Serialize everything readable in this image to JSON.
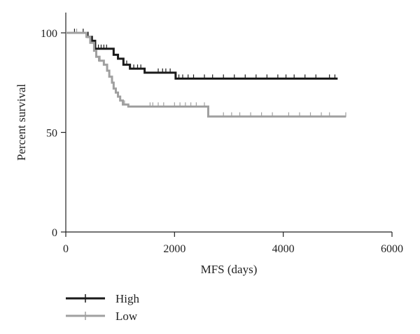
{
  "chart_data": {
    "type": "line",
    "title": "",
    "xlabel": "MFS (days)",
    "ylabel": "Percent survival",
    "xlim": [
      0,
      6000
    ],
    "ylim": [
      0,
      100
    ],
    "x_ticks": [
      "0",
      "2000",
      "4000",
      "6000"
    ],
    "y_ticks": [
      "0",
      "50",
      "100"
    ],
    "x_tick_values": [
      0,
      2000,
      4000,
      6000
    ],
    "y_tick_values": [
      0,
      50,
      100
    ],
    "grid": false,
    "legend_position": "bottom-left",
    "series": [
      {
        "name": "High",
        "color": "#1a1a1a",
        "steps": [
          [
            0,
            100
          ],
          [
            400,
            98
          ],
          [
            480,
            96
          ],
          [
            540,
            92
          ],
          [
            880,
            89
          ],
          [
            960,
            87
          ],
          [
            1060,
            84
          ],
          [
            1180,
            82
          ],
          [
            1450,
            80
          ],
          [
            2020,
            77
          ],
          [
            5000,
            77
          ]
        ],
        "censors": [
          [
            160,
            100
          ],
          [
            320,
            100
          ],
          [
            600,
            92
          ],
          [
            650,
            92
          ],
          [
            700,
            92
          ],
          [
            750,
            92
          ],
          [
            1120,
            84
          ],
          [
            1250,
            82
          ],
          [
            1320,
            82
          ],
          [
            1380,
            82
          ],
          [
            1700,
            80
          ],
          [
            1780,
            80
          ],
          [
            1840,
            80
          ],
          [
            1920,
            80
          ],
          [
            2080,
            77
          ],
          [
            2150,
            77
          ],
          [
            2250,
            77
          ],
          [
            2350,
            77
          ],
          [
            2550,
            77
          ],
          [
            2700,
            77
          ],
          [
            2900,
            77
          ],
          [
            3100,
            77
          ],
          [
            3300,
            77
          ],
          [
            3500,
            77
          ],
          [
            3700,
            77
          ],
          [
            3900,
            77
          ],
          [
            4050,
            77
          ],
          [
            4200,
            77
          ],
          [
            4400,
            77
          ],
          [
            4600,
            77
          ],
          [
            4850,
            77
          ],
          [
            4950,
            77
          ]
        ]
      },
      {
        "name": "Low",
        "color": "#a0a0a0",
        "steps": [
          [
            0,
            100
          ],
          [
            380,
            98
          ],
          [
            450,
            95
          ],
          [
            520,
            91
          ],
          [
            560,
            88
          ],
          [
            620,
            86
          ],
          [
            700,
            84
          ],
          [
            760,
            81
          ],
          [
            800,
            78
          ],
          [
            850,
            75
          ],
          [
            880,
            72
          ],
          [
            920,
            70
          ],
          [
            960,
            68
          ],
          [
            1000,
            66
          ],
          [
            1050,
            64
          ],
          [
            1150,
            63
          ],
          [
            2620,
            58
          ],
          [
            5150,
            58
          ]
        ],
        "censors": [
          [
            200,
            100
          ],
          [
            600,
            86
          ],
          [
            1080,
            64
          ],
          [
            1550,
            63
          ],
          [
            1600,
            63
          ],
          [
            1700,
            63
          ],
          [
            1800,
            63
          ],
          [
            2000,
            63
          ],
          [
            2100,
            63
          ],
          [
            2200,
            63
          ],
          [
            2300,
            63
          ],
          [
            2400,
            63
          ],
          [
            2550,
            63
          ],
          [
            2900,
            58
          ],
          [
            3050,
            58
          ],
          [
            3200,
            58
          ],
          [
            3400,
            58
          ],
          [
            3600,
            58
          ],
          [
            3800,
            58
          ],
          [
            4100,
            58
          ],
          [
            4300,
            58
          ],
          [
            4500,
            58
          ],
          [
            4700,
            58
          ],
          [
            4850,
            58
          ],
          [
            5150,
            58
          ]
        ]
      }
    ]
  }
}
